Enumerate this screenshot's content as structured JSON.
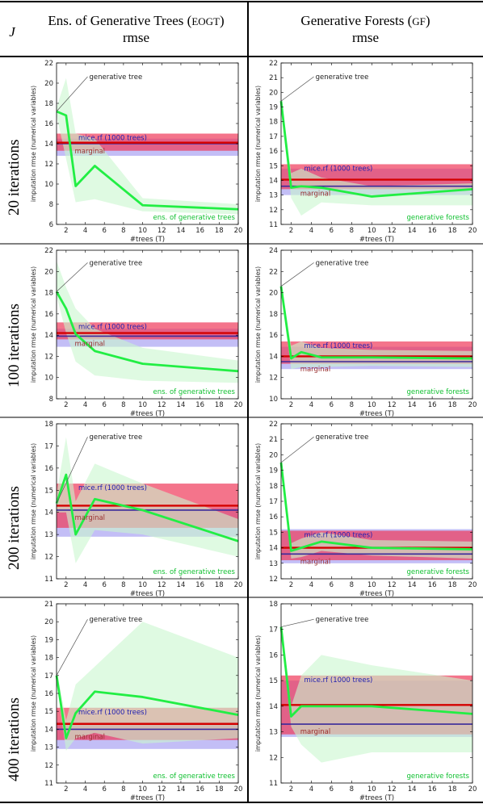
{
  "header": {
    "j_label": "J",
    "col1_title": "Ens. of Generative Trees (",
    "col1_abbr": "EOGT",
    "col1_close": ")",
    "col1_sub": "rmse",
    "col2_title": "Generative Forests (",
    "col2_abbr": "GF",
    "col2_close": ")",
    "col2_sub": "rmse"
  },
  "rows": [
    {
      "label": "20 iterations"
    },
    {
      "label": "100 iterations"
    },
    {
      "label": "200 iterations"
    },
    {
      "label": "400 iterations"
    }
  ],
  "colors": {
    "band_red": "#f0395a",
    "band_violet": "#b9b3f5",
    "band_green": "#c9f7cf",
    "line_green": "#22ee44",
    "line_red": "#d40000",
    "line_navy": "#3a2a9a",
    "text_navy": "#2020b0",
    "text_green": "#10c030",
    "text_brown": "#9a3030"
  },
  "chart_data": [
    {
      "id": "eogt-20",
      "type": "line",
      "xlabel": "#trees (T)",
      "ylabel": "imputation rmse (numerical variables)",
      "xlim": [
        1,
        20
      ],
      "ylim": [
        6,
        22
      ],
      "xticks": [
        2,
        4,
        6,
        8,
        10,
        12,
        14,
        16,
        18,
        20
      ],
      "yticks": [
        6,
        8,
        10,
        12,
        14,
        16,
        18,
        20,
        22
      ],
      "x": [
        1,
        2,
        3,
        5,
        10,
        20
      ],
      "values": [
        17.2,
        16.8,
        9.8,
        11.8,
        7.9,
        7.5
      ],
      "band": {
        "x": [
          1,
          2,
          3,
          5,
          10,
          20
        ],
        "lo": [
          16.8,
          12.5,
          8.2,
          8.5,
          7.3,
          7.0
        ],
        "hi": [
          17.6,
          20.5,
          15.0,
          14.5,
          8.6,
          8.0
        ]
      },
      "mice": 14.1,
      "mice_band": [
        13.3,
        15.0
      ],
      "marginal": 14.0,
      "marginal_band": [
        12.8,
        14.5
      ],
      "labels": {
        "gen_tree": "generative tree",
        "mice": "mice.rf (1000 trees)",
        "marginal": "marginal",
        "series": "ens. of generative trees"
      }
    },
    {
      "id": "gf-20",
      "type": "line",
      "xlabel": "#trees (T)",
      "ylabel": "imputation rmse (numerical variables)",
      "xlim": [
        1,
        20
      ],
      "ylim": [
        11,
        22
      ],
      "xticks": [
        2,
        4,
        6,
        8,
        10,
        12,
        14,
        16,
        18,
        20
      ],
      "yticks": [
        11,
        12,
        13,
        14,
        15,
        16,
        17,
        18,
        19,
        20,
        21,
        22
      ],
      "x": [
        1,
        2,
        3,
        5,
        10,
        20
      ],
      "values": [
        19.4,
        13.5,
        13.6,
        13.5,
        12.9,
        13.4
      ],
      "band": {
        "x": [
          1,
          2,
          3,
          5,
          10,
          20
        ],
        "lo": [
          19.0,
          12.8,
          11.6,
          12.5,
          12.3,
          12.3
        ],
        "hi": [
          19.8,
          14.5,
          14.8,
          14.2,
          13.6,
          13.8
        ]
      },
      "mice": 14.05,
      "mice_band": [
        13.4,
        15.1
      ],
      "marginal": 13.6,
      "marginal_band": [
        13.0,
        14.8
      ],
      "labels": {
        "gen_tree": "generative tree",
        "mice": "mice.rf (1000 trees)",
        "marginal": "marginal",
        "series": "generative forests"
      }
    },
    {
      "id": "eogt-100",
      "type": "line",
      "xlabel": "#trees (T)",
      "ylabel": "imputation rmse (numerical variables)",
      "xlim": [
        1,
        20
      ],
      "ylim": [
        8,
        22
      ],
      "xticks": [
        2,
        4,
        6,
        8,
        10,
        12,
        14,
        16,
        18,
        20
      ],
      "yticks": [
        8,
        10,
        12,
        14,
        16,
        18,
        20,
        22
      ],
      "x": [
        1,
        2,
        3,
        5,
        10,
        20
      ],
      "values": [
        18.1,
        16.5,
        14.1,
        12.5,
        11.3,
        10.6
      ],
      "band": {
        "x": [
          1,
          2,
          3,
          5,
          10,
          20
        ],
        "lo": [
          17.7,
          14.2,
          11.5,
          10.2,
          9.7,
          9.5
        ],
        "hi": [
          21.0,
          18.5,
          16.5,
          14.6,
          12.8,
          11.6
        ]
      },
      "mice": 14.2,
      "mice_band": [
        13.6,
        15.2
      ],
      "marginal": 13.9,
      "marginal_band": [
        12.9,
        14.6
      ],
      "labels": {
        "gen_tree": "generative tree",
        "mice": "mice.rf (1000 trees)",
        "marginal": "marginal",
        "series": "ens. of generative trees"
      }
    },
    {
      "id": "gf-100",
      "type": "line",
      "xlabel": "#trees (T)",
      "ylabel": "imputation rmse (numerical variables)",
      "xlim": [
        1,
        20
      ],
      "ylim": [
        10,
        24
      ],
      "xticks": [
        2,
        4,
        6,
        8,
        10,
        12,
        14,
        16,
        18,
        20
      ],
      "yticks": [
        10,
        12,
        14,
        16,
        18,
        20,
        22,
        24
      ],
      "x": [
        1,
        2,
        3,
        5,
        10,
        20
      ],
      "values": [
        20.6,
        13.8,
        14.4,
        13.9,
        13.9,
        13.8
      ],
      "band": {
        "x": [
          1,
          2,
          3,
          5,
          10,
          20
        ],
        "lo": [
          20.2,
          12.8,
          13.0,
          13.0,
          13.1,
          13.0
        ],
        "hi": [
          21.0,
          15.0,
          15.4,
          14.8,
          14.6,
          14.5
        ]
      },
      "mice": 14.0,
      "mice_band": [
        13.3,
        15.4
      ],
      "marginal": 13.5,
      "marginal_band": [
        12.8,
        14.9
      ],
      "labels": {
        "gen_tree": "generative tree",
        "mice": "mice.rf (1000 trees)",
        "marginal": "marginal",
        "series": "generative forests"
      }
    },
    {
      "id": "eogt-200",
      "type": "line",
      "xlabel": "#trees (T)",
      "ylabel": "imputation rmse (numerical variables)",
      "xlim": [
        1,
        20
      ],
      "ylim": [
        11,
        18
      ],
      "xticks": [
        2,
        4,
        6,
        8,
        10,
        12,
        14,
        16,
        18,
        20
      ],
      "yticks": [
        11,
        12,
        13,
        14,
        15,
        16,
        17,
        18
      ],
      "x": [
        1,
        2,
        3,
        5,
        10,
        20
      ],
      "values": [
        14.4,
        15.7,
        13.0,
        14.6,
        14.1,
        12.7
      ],
      "band": {
        "x": [
          1,
          2,
          3,
          5,
          10,
          20
        ],
        "lo": [
          14.0,
          14.0,
          11.7,
          13.2,
          13.0,
          12.0
        ],
        "hi": [
          14.8,
          17.4,
          14.5,
          16.2,
          15.3,
          13.7
        ]
      },
      "mice": 14.3,
      "mice_band": [
        13.3,
        15.3
      ],
      "marginal": 14.1,
      "marginal_band": [
        12.9,
        14.2
      ],
      "labels": {
        "gen_tree": "generative tree",
        "mice": "mice.rf (1000 trees)",
        "marginal": "marginal",
        "series": "ens. of generative trees"
      }
    },
    {
      "id": "gf-200",
      "type": "line",
      "xlabel": "#trees (T)",
      "ylabel": "imputation rmse (numerical variables)",
      "xlim": [
        1,
        20
      ],
      "ylim": [
        12,
        22
      ],
      "xticks": [
        2,
        4,
        6,
        8,
        10,
        12,
        14,
        16,
        18,
        20
      ],
      "yticks": [
        12,
        13,
        14,
        15,
        16,
        17,
        18,
        19,
        20,
        21,
        22
      ],
      "x": [
        1,
        2,
        3,
        5,
        10,
        20
      ],
      "values": [
        19.5,
        13.8,
        14.0,
        14.4,
        14.0,
        13.9
      ],
      "band": {
        "x": [
          1,
          2,
          3,
          5,
          10,
          20
        ],
        "lo": [
          19.1,
          13.3,
          13.4,
          13.8,
          13.5,
          13.3
        ],
        "hi": [
          19.9,
          14.3,
          14.6,
          15.0,
          14.5,
          14.4
        ]
      },
      "mice": 14.0,
      "mice_band": [
        13.2,
        15.1
      ],
      "marginal": 13.6,
      "marginal_band": [
        13.0,
        15.2
      ],
      "labels": {
        "gen_tree": "generative tree",
        "mice": "mice.rf (1000 trees)",
        "marginal": "marginal",
        "series": "generative forests"
      }
    },
    {
      "id": "eogt-400",
      "type": "line",
      "xlabel": "#trees (T)",
      "ylabel": "imputation rmse (numerical variables)",
      "xlim": [
        1,
        20
      ],
      "ylim": [
        11,
        21
      ],
      "xticks": [
        2,
        4,
        6,
        8,
        10,
        12,
        14,
        16,
        18,
        20
      ],
      "yticks": [
        11,
        12,
        13,
        14,
        15,
        16,
        17,
        18,
        19,
        20,
        21
      ],
      "x": [
        1,
        2,
        3,
        5,
        10,
        20
      ],
      "values": [
        17.0,
        13.5,
        14.9,
        16.1,
        15.8,
        14.8
      ],
      "band": {
        "x": [
          1,
          2,
          3,
          5,
          10,
          20
        ],
        "lo": [
          16.6,
          12.8,
          13.5,
          13.8,
          13.2,
          13.5
        ],
        "hi": [
          17.4,
          14.5,
          16.5,
          17.5,
          20.0,
          18.0
        ]
      },
      "mice": 14.3,
      "mice_band": [
        13.4,
        15.2
      ],
      "marginal": 14.0,
      "marginal_band": [
        12.9,
        14.4
      ],
      "labels": {
        "gen_tree": "generative tree",
        "mice": "mice.rf (1000 trees)",
        "marginal": "marginal",
        "series": "ens. of generative trees"
      }
    },
    {
      "id": "gf-400",
      "type": "line",
      "xlabel": "#trees (T)",
      "ylabel": "imputation rmse (numerical variables)",
      "xlim": [
        1,
        20
      ],
      "ylim": [
        11,
        18
      ],
      "xticks": [
        2,
        4,
        6,
        8,
        10,
        12,
        14,
        16,
        18,
        20
      ],
      "yticks": [
        11,
        12,
        13,
        14,
        15,
        16,
        17,
        18
      ],
      "x": [
        1,
        2,
        3,
        5,
        10,
        20
      ],
      "values": [
        17.1,
        13.6,
        14.0,
        14.0,
        14.0,
        13.7
      ],
      "band": {
        "x": [
          1,
          2,
          3,
          5,
          10,
          20
        ],
        "lo": [
          16.8,
          13.2,
          12.5,
          11.8,
          12.2,
          12.2
        ],
        "hi": [
          17.4,
          14.0,
          15.2,
          16.0,
          15.6,
          15.0
        ]
      },
      "mice": 14.05,
      "mice_band": [
        12.9,
        15.2
      ],
      "marginal": 13.3,
      "marginal_band": [
        12.8,
        15.0
      ],
      "labels": {
        "gen_tree": "generative tree",
        "mice": "mice.rf (1000 trees)",
        "marginal": "marginal",
        "series": "generative forests"
      }
    }
  ]
}
